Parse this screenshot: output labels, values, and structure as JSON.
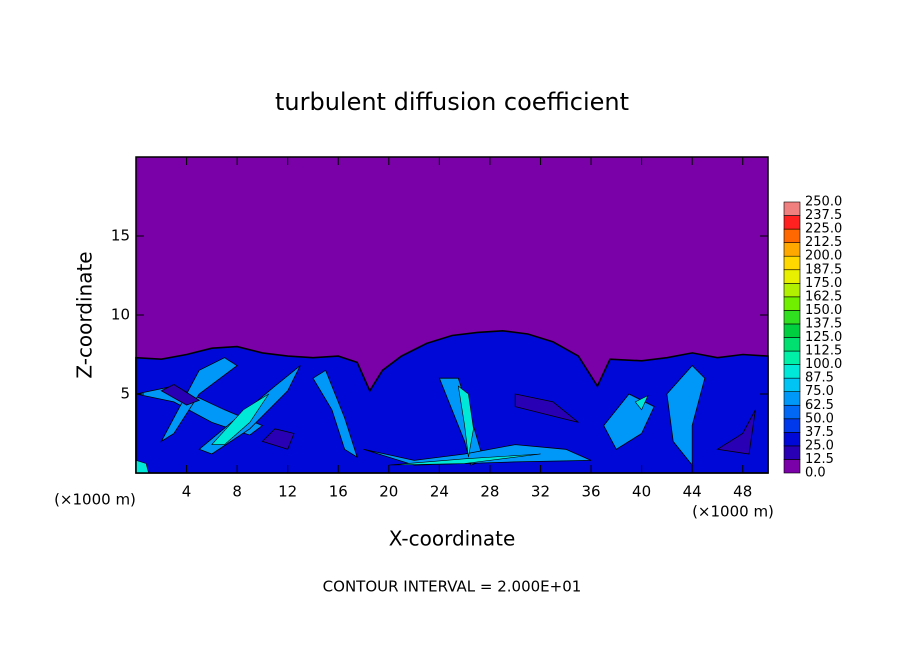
{
  "chart_data": {
    "type": "contour",
    "title": "turbulent diffusion coefficient",
    "x_label": "X-coordinate",
    "y_label": "Z-coordinate",
    "x_unit_label": "(×1000 m)",
    "footnote": "CONTOUR INTERVAL = 2.000E+01",
    "xlim": [
      0,
      50
    ],
    "xticks": [
      4,
      8,
      12,
      16,
      20,
      24,
      28,
      32,
      36,
      40,
      44,
      48
    ],
    "ylim": [
      0,
      20
    ],
    "yticks": [
      5,
      10,
      15
    ],
    "colorbar": {
      "levels": [
        {
          "value": 0,
          "label": "0.0"
        },
        12.5,
        {
          "value": 25,
          "label": "25.0"
        },
        37.5,
        {
          "value": 50,
          "label": "50.0"
        },
        62.5,
        {
          "value": 75,
          "label": "75.0"
        },
        87.5,
        {
          "value": 100,
          "label": "100.0"
        },
        112.5,
        {
          "value": 125,
          "label": "125.0"
        },
        137.5,
        {
          "value": 150,
          "label": "150.0"
        },
        162.5,
        {
          "value": 175,
          "label": "175.0"
        },
        187.5,
        {
          "value": 200,
          "label": "200.0"
        },
        212.5,
        {
          "value": 225,
          "label": "225.0"
        },
        237.5,
        {
          "value": 250,
          "label": "250.0"
        }
      ],
      "colors": [
        "#7a00a8",
        "#2a00b4",
        "#0008d8",
        "#0038ec",
        "#0068f4",
        "#0098f8",
        "#00c4f4",
        "#00e8d8",
        "#00f0a8",
        "#00e070",
        "#00d040",
        "#30e020",
        "#70f000",
        "#b0f000",
        "#e8f000",
        "#ffd800",
        "#ffa800",
        "#ff6800",
        "#ff2020",
        "#f08080"
      ]
    }
  }
}
